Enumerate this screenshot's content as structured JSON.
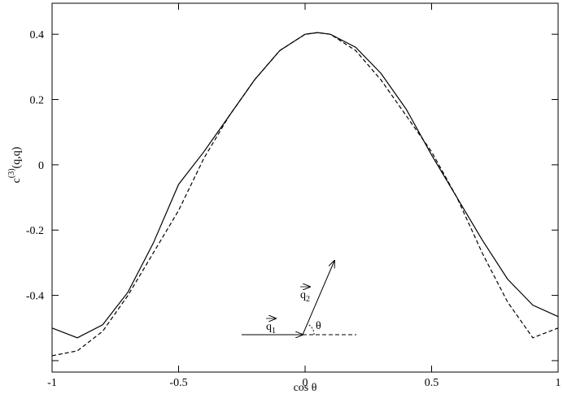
{
  "chart_data": {
    "type": "line",
    "x_label": "cos θ",
    "y_label": {
      "base": "c",
      "sup": "(3)",
      "rest": "(q,q)"
    },
    "x": [
      -1,
      -0.9,
      -0.8,
      -0.7,
      -0.6,
      -0.5,
      -0.4,
      -0.3,
      -0.2,
      -0.1,
      0,
      0.05,
      0.1,
      0.2,
      0.3,
      0.4,
      0.5,
      0.6,
      0.7,
      0.8,
      0.9,
      1
    ],
    "series": [
      {
        "color": "#000000",
        "dash": false,
        "values": [
          -0.5,
          -0.53,
          -0.49,
          -0.39,
          -0.24,
          -0.06,
          0.04,
          0.15,
          0.26,
          0.35,
          0.4,
          0.405,
          0.4,
          0.36,
          0.28,
          0.17,
          0.03,
          -0.1,
          -0.23,
          -0.35,
          -0.43,
          -0.465
        ]
      },
      {
        "color": "#000000",
        "dash": true,
        "values": [
          -0.585,
          -0.57,
          -0.51,
          -0.4,
          -0.27,
          -0.14,
          0.02,
          0.15,
          0.26,
          0.35,
          0.4,
          0.405,
          0.4,
          0.35,
          0.26,
          0.15,
          0.04,
          -0.1,
          -0.27,
          -0.42,
          -0.53,
          -0.5
        ]
      }
    ],
    "xlim": [
      -1,
      1
    ],
    "xticks": [
      -1,
      -0.5,
      0,
      0.5,
      1
    ],
    "ylim": [
      -0.635,
      0.495
    ],
    "yticks": [
      -0.6,
      -0.4,
      -0.2,
      0,
      0.2,
      0.4
    ],
    "ytick_labels_shown": [
      false,
      true,
      true,
      true,
      true,
      true
    ],
    "annotations": {
      "q1": {
        "text": "q",
        "sub": "1"
      },
      "q2": {
        "text": "q",
        "sub": "2"
      },
      "angle": "θ"
    }
  }
}
